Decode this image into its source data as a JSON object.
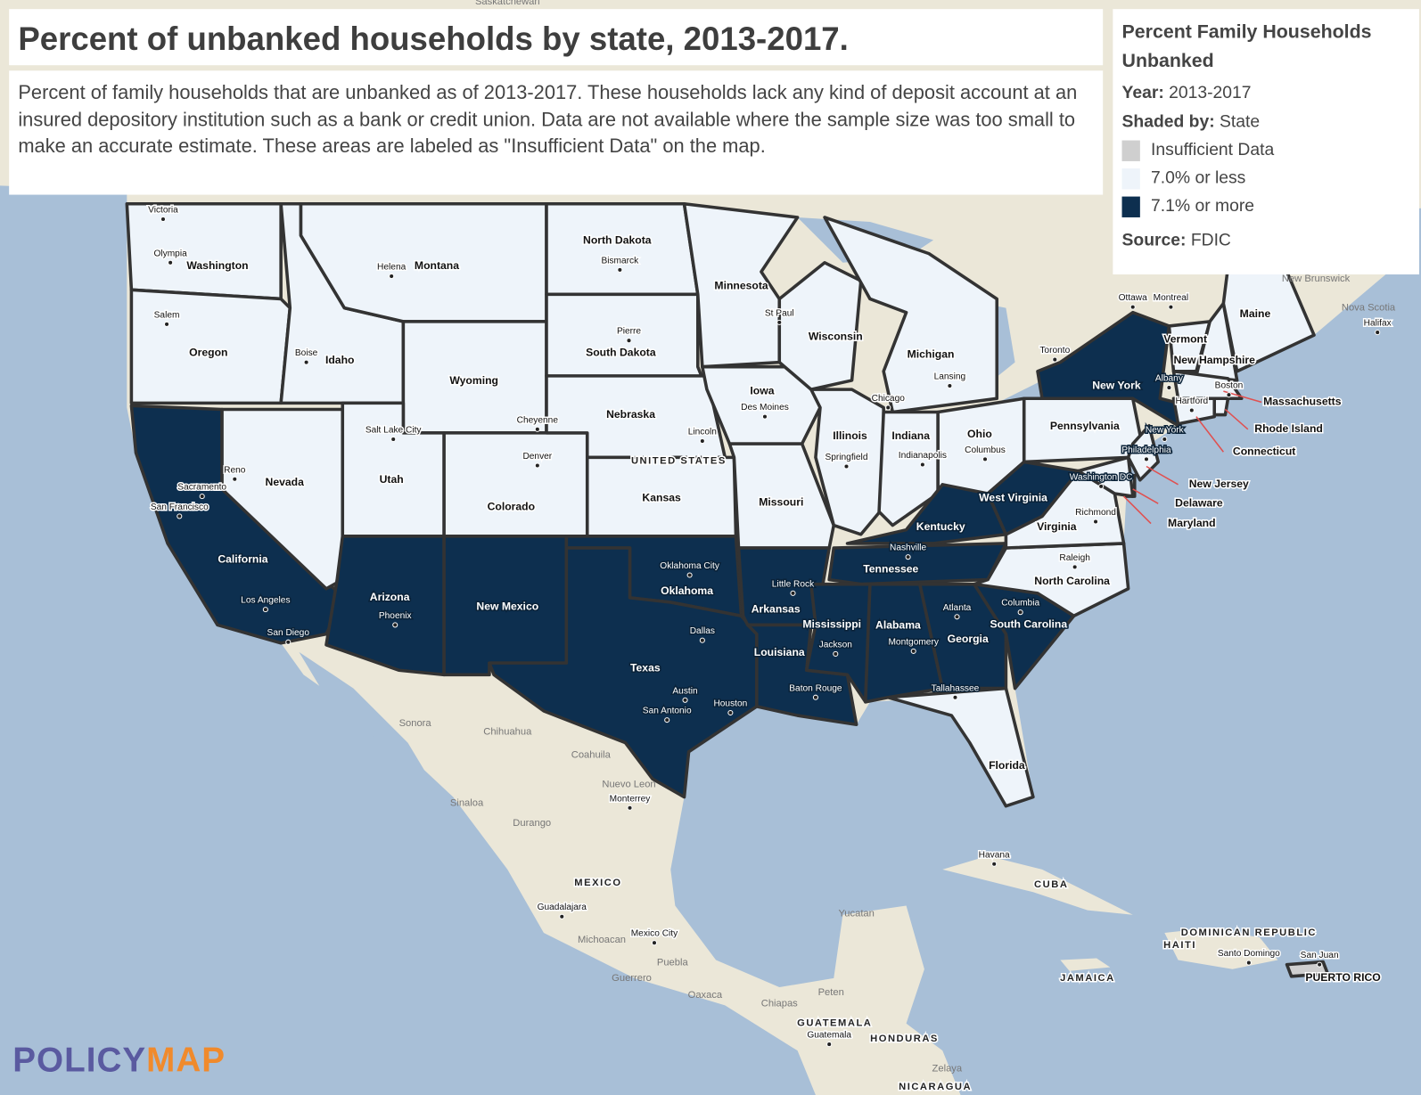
{
  "header": {
    "title": "Percent of unbanked households by state, 2013-2017.",
    "description": "Percent of family households that are unbanked as of 2013-2017. These households lack any kind of deposit account at an insured depository institution such as a bank or credit union. Data are not available where the sample size was too small to make an accurate estimate. These areas are labeled as \"Insufficient Data\" on the map."
  },
  "legend": {
    "title": "Percent Family Households Unbanked",
    "year_label": "Year:",
    "year": "2013-2017",
    "shaded_by_label": "Shaded by:",
    "shaded_by": "State",
    "items": [
      {
        "label": "Insufficient Data",
        "color": "#cfcfcf"
      },
      {
        "label": "7.0% or less",
        "color": "#eef4fa"
      },
      {
        "label": "7.1% or more",
        "color": "#0d2f4f"
      }
    ],
    "source_label": "Source:",
    "source": "FDIC"
  },
  "states": [
    {
      "name": "Washington",
      "color": "#eef4fa"
    },
    {
      "name": "Oregon",
      "color": "#eef4fa"
    },
    {
      "name": "California",
      "color": "#0d2f4f"
    },
    {
      "name": "Nevada",
      "color": "#eef4fa"
    },
    {
      "name": "Idaho",
      "color": "#eef4fa"
    },
    {
      "name": "Montana",
      "color": "#eef4fa"
    },
    {
      "name": "Wyoming",
      "color": "#eef4fa"
    },
    {
      "name": "Utah",
      "color": "#eef4fa"
    },
    {
      "name": "Colorado",
      "color": "#eef4fa"
    },
    {
      "name": "Arizona",
      "color": "#0d2f4f"
    },
    {
      "name": "New Mexico",
      "color": "#0d2f4f"
    },
    {
      "name": "North Dakota",
      "color": "#eef4fa"
    },
    {
      "name": "South Dakota",
      "color": "#eef4fa"
    },
    {
      "name": "Nebraska",
      "color": "#eef4fa"
    },
    {
      "name": "Kansas",
      "color": "#eef4fa"
    },
    {
      "name": "Oklahoma",
      "color": "#0d2f4f"
    },
    {
      "name": "Texas",
      "color": "#0d2f4f"
    },
    {
      "name": "Minnesota",
      "color": "#eef4fa"
    },
    {
      "name": "Iowa",
      "color": "#eef4fa"
    },
    {
      "name": "Missouri",
      "color": "#eef4fa"
    },
    {
      "name": "Arkansas",
      "color": "#0d2f4f"
    },
    {
      "name": "Louisiana",
      "color": "#0d2f4f"
    },
    {
      "name": "Wisconsin",
      "color": "#eef4fa"
    },
    {
      "name": "Illinois",
      "color": "#eef4fa"
    },
    {
      "name": "Michigan",
      "color": "#eef4fa"
    },
    {
      "name": "Indiana",
      "color": "#eef4fa"
    },
    {
      "name": "Ohio",
      "color": "#eef4fa"
    },
    {
      "name": "Kentucky",
      "color": "#0d2f4f"
    },
    {
      "name": "Tennessee",
      "color": "#0d2f4f"
    },
    {
      "name": "Mississippi",
      "color": "#0d2f4f"
    },
    {
      "name": "Alabama",
      "color": "#0d2f4f"
    },
    {
      "name": "Georgia",
      "color": "#0d2f4f"
    },
    {
      "name": "Florida",
      "color": "#eef4fa"
    },
    {
      "name": "South Carolina",
      "color": "#0d2f4f"
    },
    {
      "name": "North Carolina",
      "color": "#eef4fa"
    },
    {
      "name": "Virginia",
      "color": "#eef4fa"
    },
    {
      "name": "West Virginia",
      "color": "#0d2f4f"
    },
    {
      "name": "Pennsylvania",
      "color": "#eef4fa"
    },
    {
      "name": "New York",
      "color": "#0d2f4f"
    },
    {
      "name": "Vermont",
      "color": "#eef4fa"
    },
    {
      "name": "New Hampshire",
      "color": "#eef4fa"
    },
    {
      "name": "Maine",
      "color": "#eef4fa"
    },
    {
      "name": "Massachusetts",
      "color": "#eef4fa"
    },
    {
      "name": "Rhode Island",
      "color": "#eef4fa"
    },
    {
      "name": "Connecticut",
      "color": "#eef4fa"
    },
    {
      "name": "New Jersey",
      "color": "#eef4fa"
    },
    {
      "name": "Delaware",
      "color": "#eef4fa"
    },
    {
      "name": "Maryland",
      "color": "#eef4fa"
    },
    {
      "name": "PUERTO RICO",
      "color": "#cfcfcf"
    }
  ],
  "cities": [
    "Victoria",
    "Olympia",
    "Salem",
    "Boise",
    "Helena",
    "Bismarck",
    "Pierre",
    "Cheyenne",
    "Salt Lake City",
    "Denver",
    "Reno",
    "Sacramento",
    "San Francisco",
    "Los Angeles",
    "San Diego",
    "Phoenix",
    "Lincoln",
    "St Paul",
    "Des Moines",
    "Chicago",
    "Springfield",
    "Indianapolis",
    "Lansing",
    "Columbus",
    "Oklahoma City",
    "Dallas",
    "Austin",
    "San Antonio",
    "Houston",
    "Little Rock",
    "Jackson",
    "Baton Rouge",
    "Montgomery",
    "Atlanta",
    "Tallahassee",
    "Columbia",
    "Nashville",
    "Raleigh",
    "Richmond",
    "Washington DC",
    "Philadelphia",
    "New York",
    "Hartford",
    "Boston",
    "Albany",
    "Toronto",
    "Ottawa",
    "Montreal",
    "Halifax",
    "Havana",
    "Monterrey",
    "Guadalajara",
    "Mexico City",
    "Guatemala",
    "Santo Domingo",
    "San Juan"
  ],
  "regions": [
    "Saskatchewan",
    "New Brunswick",
    "Nova Scotia",
    "Sonora",
    "Chihuahua",
    "Coahuila",
    "Nuevo Leon",
    "Sinaloa",
    "Durango",
    "Michoacan",
    "Puebla",
    "Guerrero",
    "Oaxaca",
    "Chiapas",
    "Yucatan",
    "Peten",
    "Zelaya"
  ],
  "countries": [
    "UNITED STATES",
    "MEXICO",
    "CUBA",
    "HAITI",
    "DOMINICAN REPUBLIC",
    "JAMAICA",
    "GUATEMALA",
    "HONDURAS",
    "NICARAGUA"
  ],
  "logo": {
    "part1": "POLICY",
    "part2": "MAP"
  }
}
